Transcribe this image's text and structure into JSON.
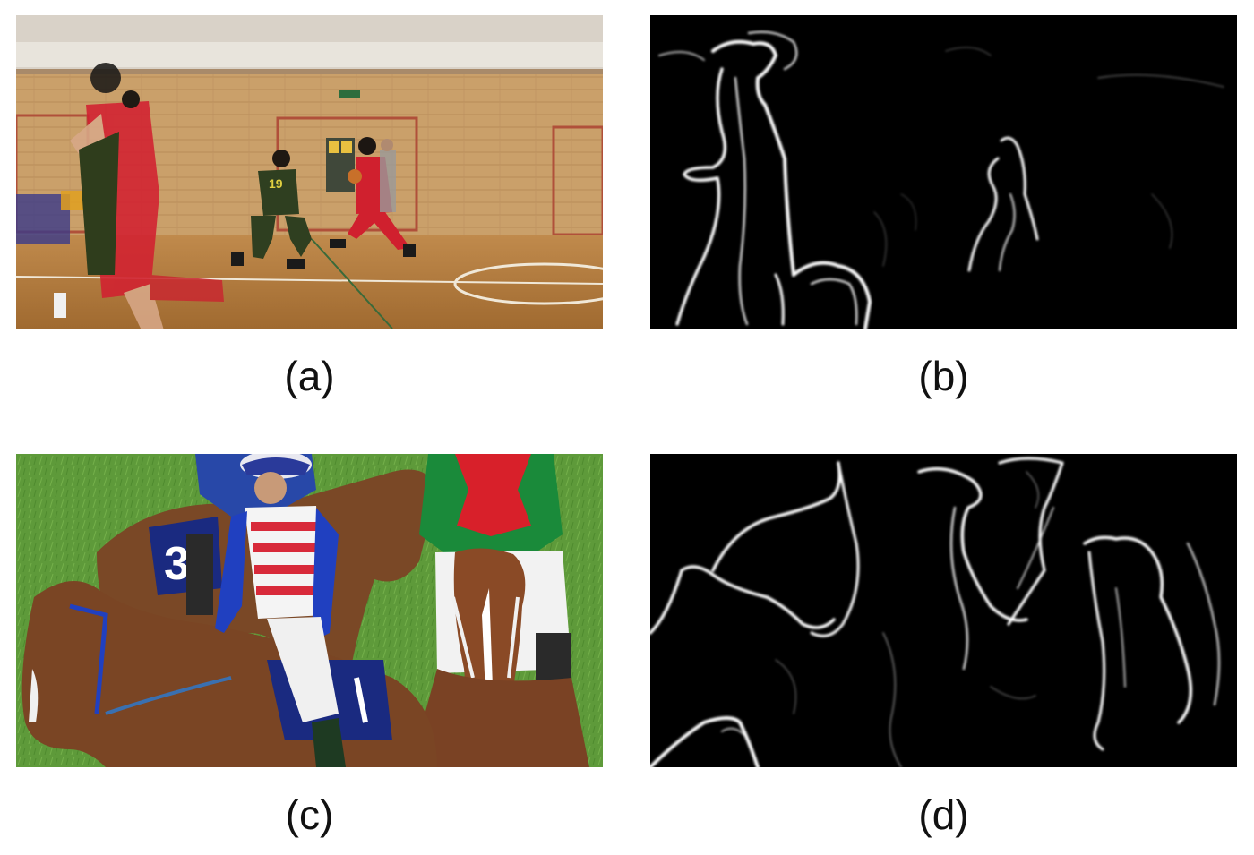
{
  "figure": {
    "panels": [
      {
        "id": "a",
        "caption": "(a)"
      },
      {
        "id": "b",
        "caption": "(b)"
      },
      {
        "id": "c",
        "caption": "(c)"
      },
      {
        "id": "d",
        "caption": "(d)"
      }
    ]
  },
  "colors": {
    "background": "#ffffff",
    "gym_wall": "#c99a5c",
    "gym_floor": "#b07a3e",
    "red_jersey": "#d8202e",
    "green_jersey": "#3a4a22",
    "grass": "#5f9a3a",
    "horse_brown": "#7a4a2a",
    "jockey_blue": "#2040b0",
    "map_background": "#000000",
    "map_edges": "#ffffff"
  },
  "icons": {
    "panel_a": "basketball-game-photo",
    "panel_b": "basketball-motion-edge-map",
    "panel_c": "horse-race-jockeys-photo",
    "panel_d": "horse-race-motion-edge-map"
  }
}
